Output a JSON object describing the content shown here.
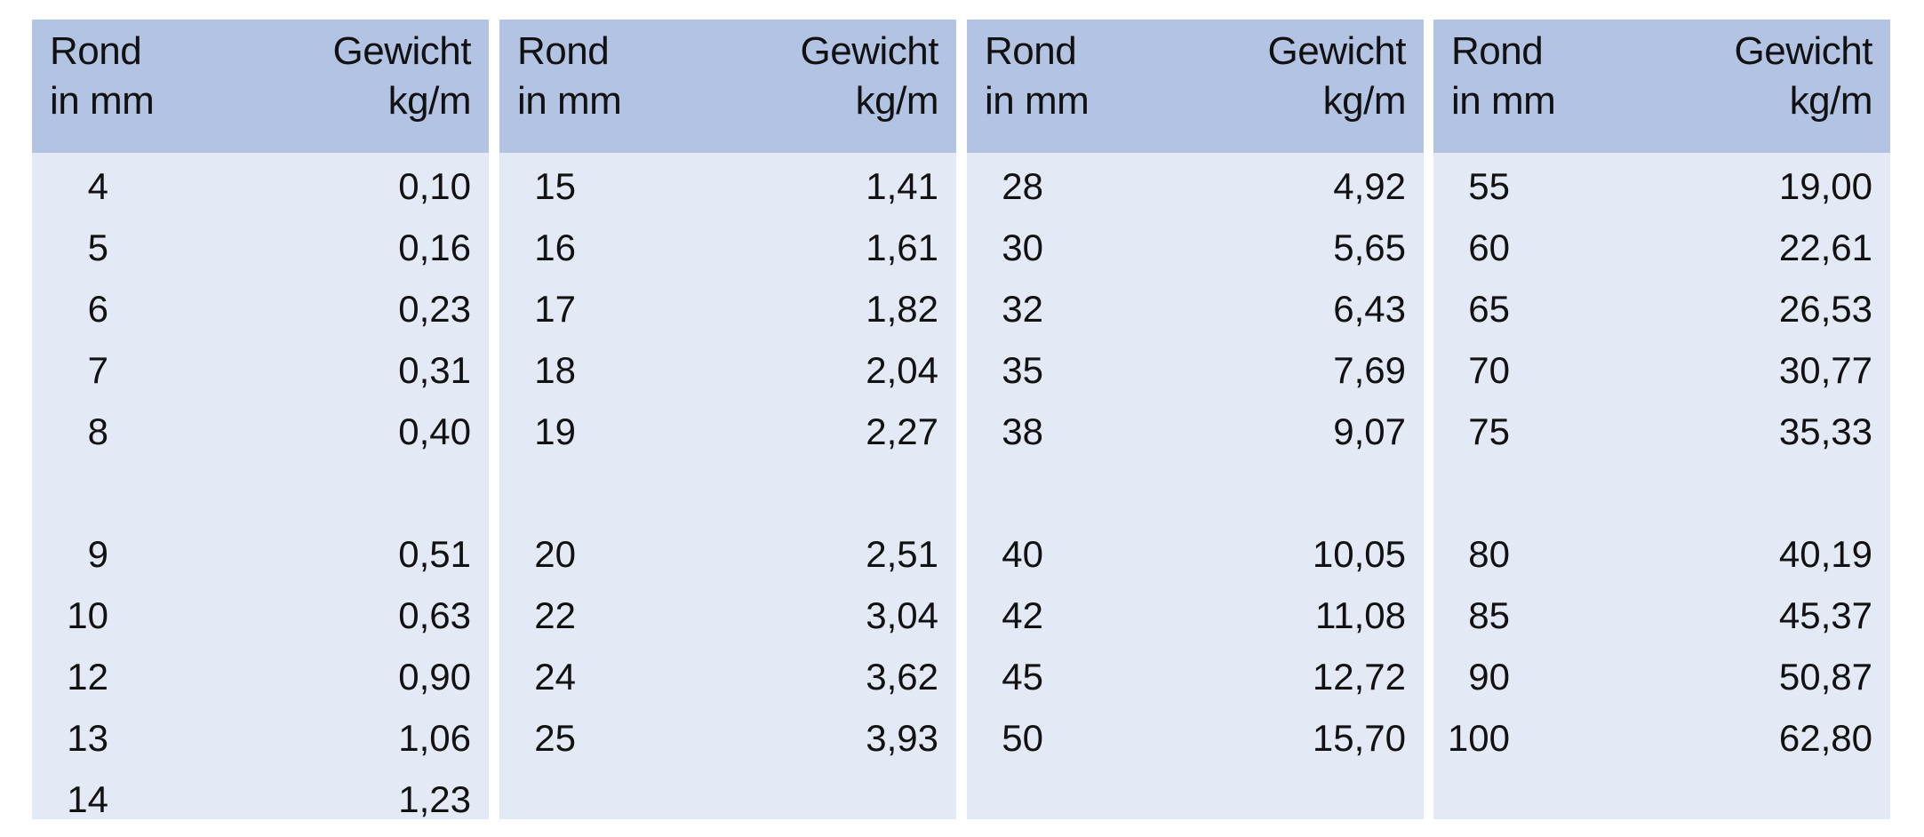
{
  "header": {
    "col1_line1": "Rond",
    "col1_line2": "in mm",
    "col2_line1": "Gewicht",
    "col2_line2": "kg/m"
  },
  "colors": {
    "header_bg": "#b3c3e3",
    "body_bg": "#e3e9f5"
  },
  "panels": [
    {
      "rows": [
        [
          "4",
          "0,10"
        ],
        [
          "5",
          "0,16"
        ],
        [
          "6",
          "0,23"
        ],
        [
          "7",
          "0,31"
        ],
        [
          "8",
          "0,40"
        ],
        [
          "9",
          "0,51"
        ],
        [
          "10",
          "0,63"
        ],
        [
          "12",
          "0,90"
        ],
        [
          "13",
          "1,06"
        ],
        [
          "14",
          "1,23"
        ]
      ]
    },
    {
      "rows": [
        [
          "15",
          "1,41"
        ],
        [
          "16",
          "1,61"
        ],
        [
          "17",
          "1,82"
        ],
        [
          "18",
          "2,04"
        ],
        [
          "19",
          "2,27"
        ],
        [
          "20",
          "2,51"
        ],
        [
          "22",
          "3,04"
        ],
        [
          "24",
          "3,62"
        ],
        [
          "25",
          "3,93"
        ]
      ]
    },
    {
      "rows": [
        [
          "28",
          "4,92"
        ],
        [
          "30",
          "5,65"
        ],
        [
          "32",
          "6,43"
        ],
        [
          "35",
          "7,69"
        ],
        [
          "38",
          "9,07"
        ],
        [
          "40",
          "10,05"
        ],
        [
          "42",
          "11,08"
        ],
        [
          "45",
          "12,72"
        ],
        [
          "50",
          "15,70"
        ]
      ]
    },
    {
      "rows": [
        [
          "55",
          "19,00"
        ],
        [
          "60",
          "22,61"
        ],
        [
          "65",
          "26,53"
        ],
        [
          "70",
          "30,77"
        ],
        [
          "75",
          "35,33"
        ],
        [
          "80",
          "40,19"
        ],
        [
          "85",
          "45,37"
        ],
        [
          "90",
          "50,87"
        ],
        [
          "100",
          "62,80"
        ]
      ]
    }
  ]
}
